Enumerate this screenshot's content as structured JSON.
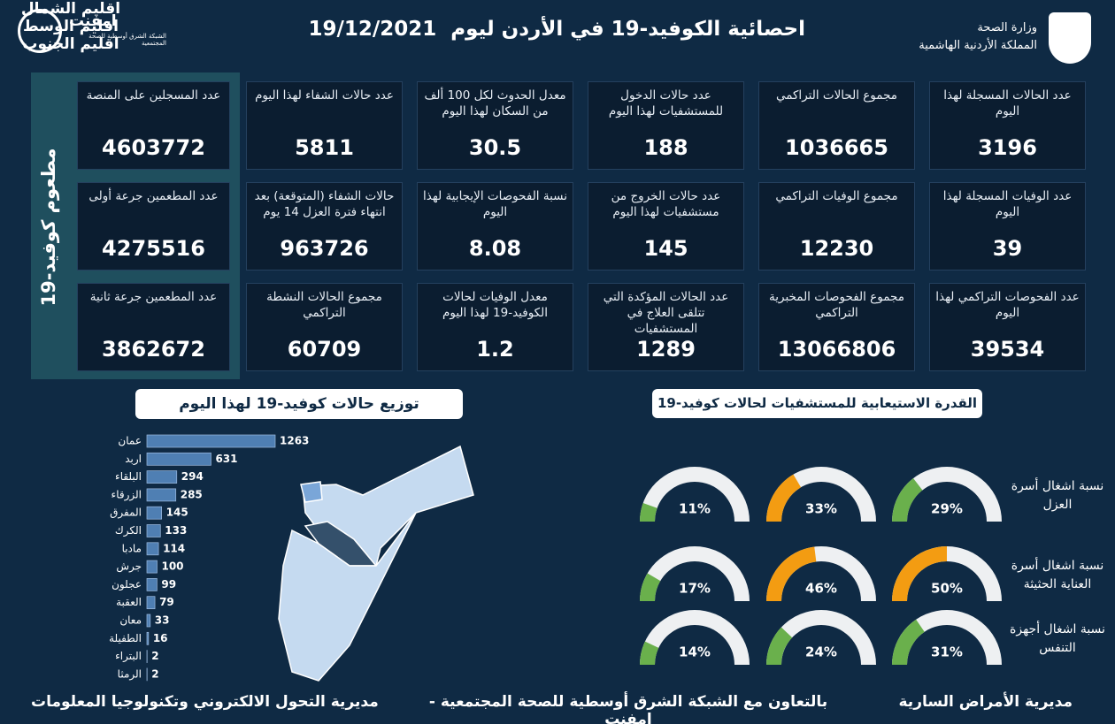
{
  "header": {
    "title": "احصائية الكوفيد-19 في الأردن ليوم",
    "date": "19/12/2021",
    "ministry": "وزارة الصحة",
    "kingdom": "المملكة الأردنية الهاشمية",
    "logo": "امفنت",
    "logo_subtitle": "الشبكة الشرق أوسطية للصحة المجتمعية"
  },
  "stats": [
    {
      "label": "عدد الحالات المسجلة لهذا اليوم",
      "value": 3196
    },
    {
      "label": "مجموع الحالات التراكمي",
      "value": 1036665
    },
    {
      "label": "عدد حالات الدخول للمستشفيات لهذا اليوم",
      "value": 188
    },
    {
      "label": "معدل الحدوث لكل 100 ألف من السكان لهذا اليوم",
      "value": 30.5
    },
    {
      "label": "عدد حالات الشفاء لهذا اليوم",
      "value": 5811
    },
    {
      "label": "عدد الوفيات المسجلة لهذا اليوم",
      "value": 39
    },
    {
      "label": "مجموع الوفيات التراكمي",
      "value": 12230
    },
    {
      "label": "عدد حالات الخروج من مستشفيات لهذا اليوم",
      "value": 145
    },
    {
      "label": "نسبة الفحوصات الإيجابية لهذا اليوم",
      "value": 8.08
    },
    {
      "label": "حالات الشفاء (المتوقعة) بعد انتهاء فترة العزل 14 يوم",
      "value": 963726
    },
    {
      "label": "عدد الفحوصات التراكمي لهذا اليوم",
      "value": 39534
    },
    {
      "label": "مجموع الفحوصات المخبرية التراكمي",
      "value": 13066806
    },
    {
      "label": "عدد الحالات المؤكدة التي تتلقى العلاج في المستشفيات",
      "value": 1289
    },
    {
      "label": "معدل الوفيات لحالات الكوفيد-19 لهذا اليوم",
      "value": 1.2
    },
    {
      "label": "مجموع الحالات النشطة التراكمي",
      "value": 60709
    }
  ],
  "vaccine": {
    "title": "مطعوم كوفيد-19",
    "cards": [
      {
        "label": "عدد المسجلين على المنصة",
        "value": 4603772
      },
      {
        "label": "عدد المطعمين جرعة أولى",
        "value": 4275516
      },
      {
        "label": "عدد المطعمين جرعة ثانية",
        "value": 3862672
      }
    ]
  },
  "chart_data": [
    {
      "type": "bar",
      "title": "توزيع حالات كوفيد-19 لهذا اليوم",
      "color": "#4f7fb3",
      "categories": [
        "عمان",
        "اربد",
        "البلقاء",
        "الزرقاء",
        "المفرق",
        "الكرك",
        "مادبا",
        "جرش",
        "عجلون",
        "العقبة",
        "معان",
        "الطفيلة",
        "البتراء",
        "الرمثا"
      ],
      "values": [
        1263,
        631,
        294,
        285,
        145,
        133,
        114,
        100,
        99,
        79,
        33,
        16,
        2,
        2
      ]
    },
    {
      "type": "gauge",
      "title": "القدرة الاستيعابية للمستشفيات لحالات كوفيد-19",
      "ylim": [
        0,
        100
      ],
      "rows": [
        "نسبة اشغال أسرة العزل",
        "نسبة اشغال أسرة العناية الحثيثة",
        "نسبة اشغال أجهزة التنفس"
      ],
      "series": [
        {
          "name": "اقليم الشمال",
          "values": [
            29,
            50,
            31
          ],
          "value_labels": [
            "29%",
            "50%",
            "31%"
          ],
          "colors": [
            "#6ab04c",
            "#f39c12",
            "#6ab04c"
          ]
        },
        {
          "name": "اقليم الوسط",
          "values": [
            33,
            46,
            24
          ],
          "value_labels": [
            "33%",
            "46%",
            "24%"
          ],
          "colors": [
            "#f39c12",
            "#f39c12",
            "#6ab04c"
          ]
        },
        {
          "name": "اقليم الجنوب",
          "values": [
            11,
            17,
            14
          ],
          "value_labels": [
            "11%",
            "17%",
            "14%"
          ],
          "colors": [
            "#6ab04c",
            "#6ab04c",
            "#6ab04c"
          ]
        }
      ]
    }
  ],
  "footer": {
    "right": "مديرية الأمراض السارية",
    "center": "بالتعاون مع الشبكة الشرق أوسطية للصحة المجتمعية - إمفنت",
    "left": "مديرية التحول الالكتروني وتكنولوجيا المعلومات"
  }
}
